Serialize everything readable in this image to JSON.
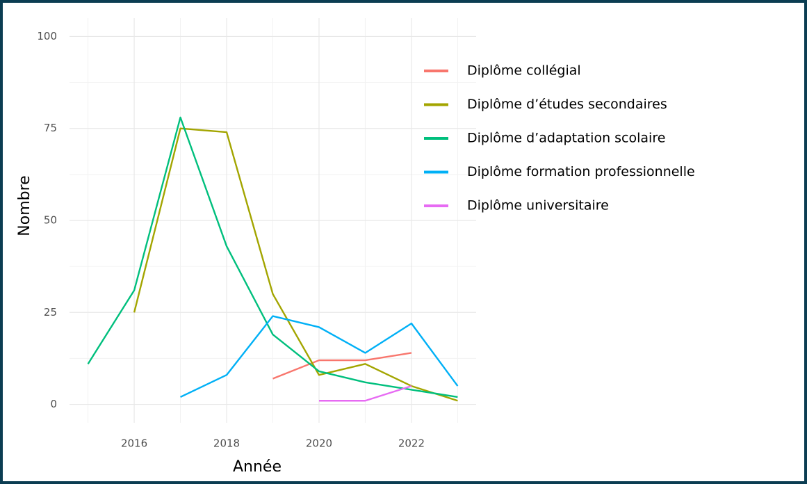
{
  "chart_data": {
    "type": "line",
    "x_label": "Année",
    "y_label": "Nombre",
    "x": [
      2015,
      2016,
      2017,
      2018,
      2019,
      2020,
      2021,
      2022,
      2023
    ],
    "series": [
      {
        "name": "Diplôme collégial",
        "color": "#F8766D",
        "values": [
          null,
          null,
          null,
          null,
          7,
          12,
          12,
          14,
          null
        ]
      },
      {
        "name": "Diplôme d’études secondaires",
        "color": "#A3A500",
        "values": [
          null,
          25,
          75,
          74,
          30,
          8,
          11,
          5,
          1
        ]
      },
      {
        "name": "Diplôme d’adaptation scolaire",
        "color": "#00BF7D",
        "values": [
          11,
          31,
          78,
          43,
          19,
          9,
          6,
          4,
          2
        ]
      },
      {
        "name": "Diplôme formation professionnelle",
        "color": "#00B0F6",
        "values": [
          null,
          null,
          2,
          8,
          24,
          21,
          14,
          22,
          5
        ]
      },
      {
        "name": "Diplôme universitaire",
        "color": "#E76BF3",
        "values": [
          null,
          null,
          null,
          null,
          null,
          1,
          1,
          5,
          null
        ]
      }
    ],
    "xlim": [
      2014.6,
      2023.4
    ],
    "xticks": [
      2016,
      2018,
      2020,
      2022
    ],
    "xminorticks": [
      2015,
      2017,
      2019,
      2021,
      2023
    ],
    "ylim": [
      -5,
      105
    ],
    "yticks": [
      0,
      25,
      50,
      75,
      100
    ],
    "yminorticks": [
      12.5,
      37.5,
      62.5,
      87.5
    ],
    "grid": true,
    "legend": "right"
  }
}
